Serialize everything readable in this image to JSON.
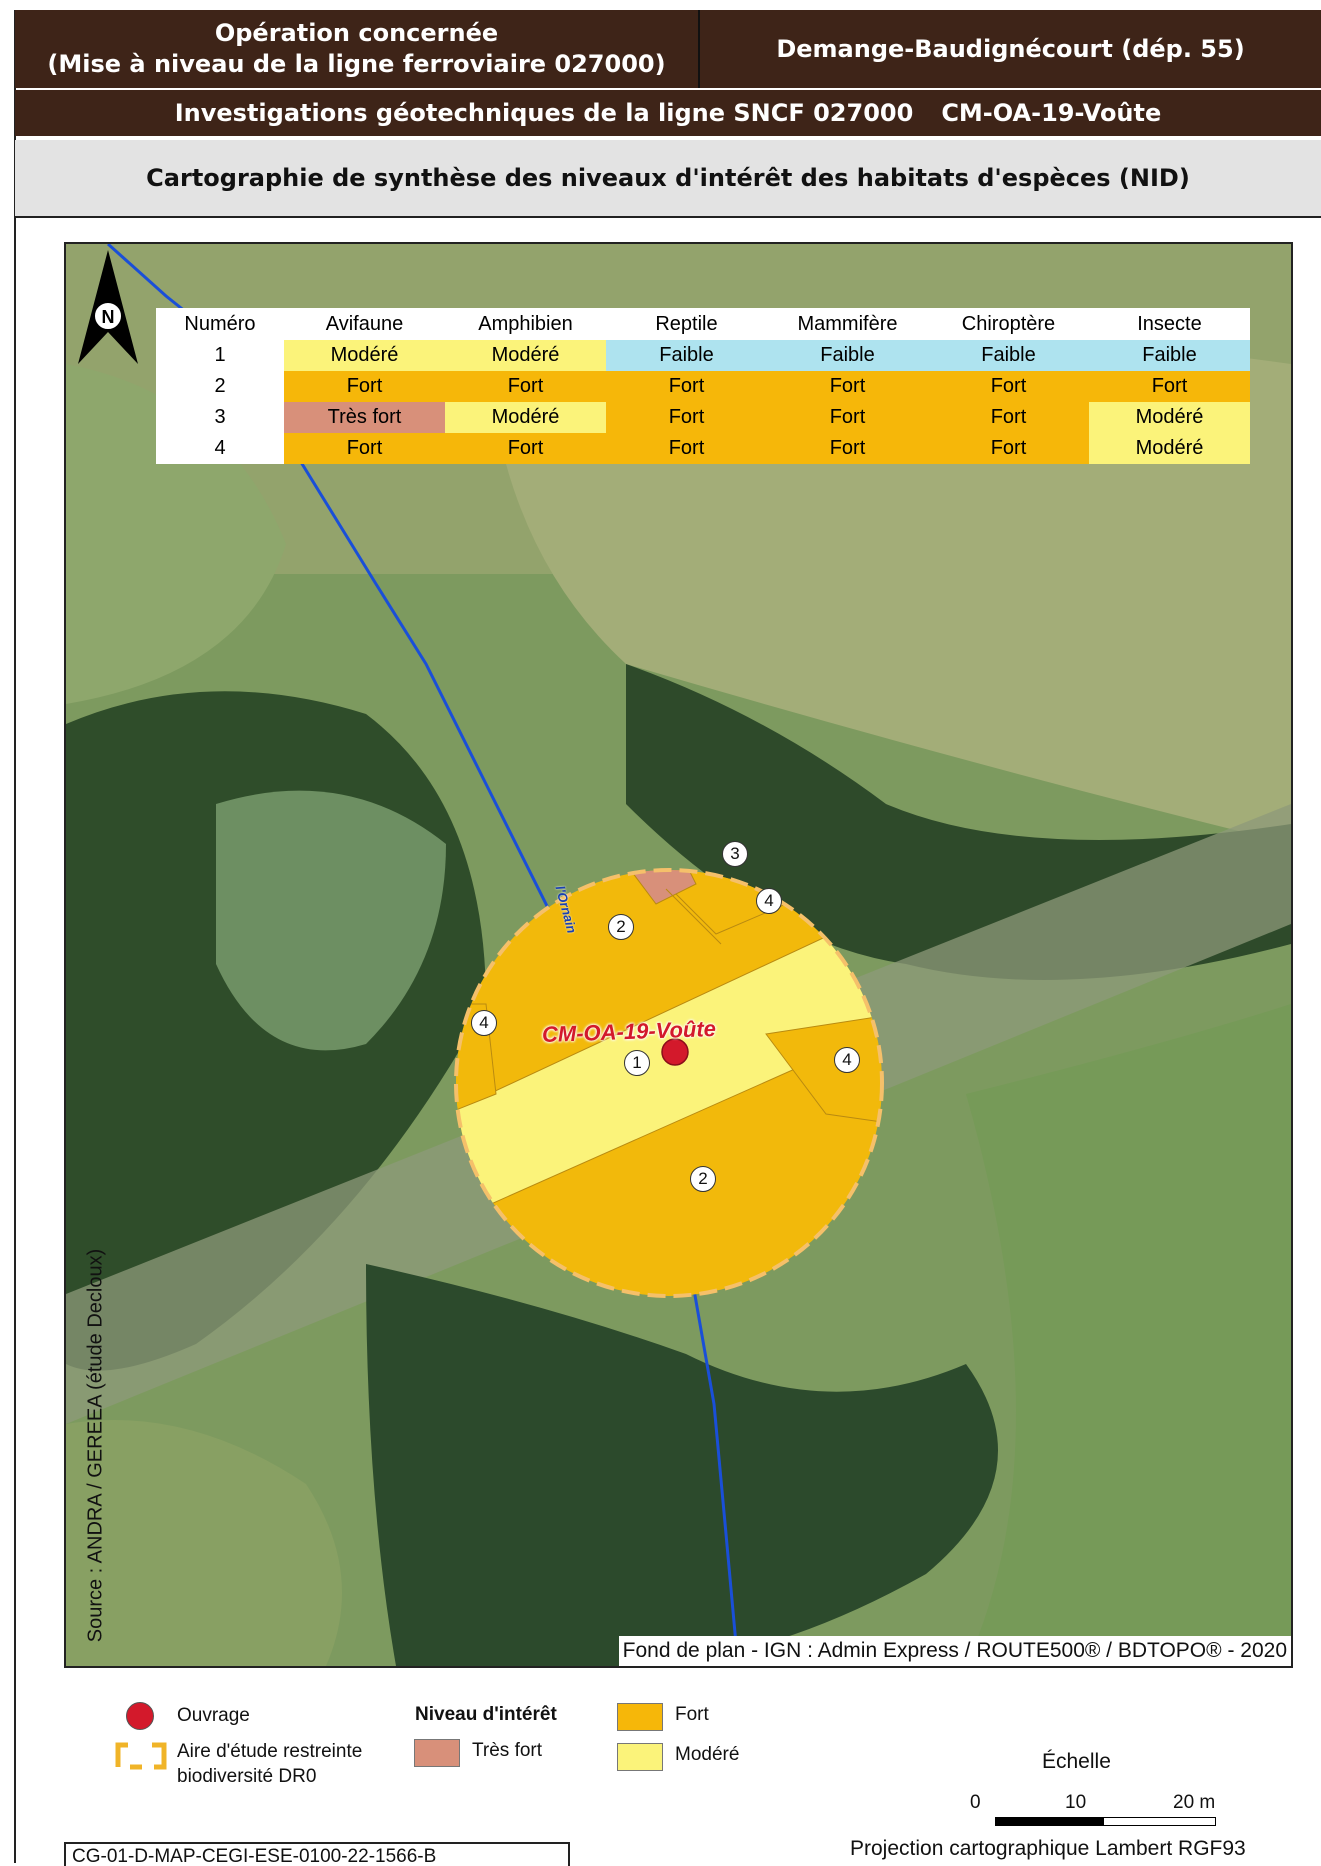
{
  "header": {
    "operation_line1": "Opération concernée",
    "operation_line2": "(Mise à niveau de la ligne ferroviaire 027000)",
    "location": "Demange-Baudignécourt (dép. 55)",
    "investigations": "Investigations géotechniques de la ligne SNCF 027000",
    "site_code": "CM-OA-19-Voûte"
  },
  "subtitle": "Cartographie de synthèse des niveaux d'intérêt des habitats d'espèces (NID)",
  "colors": {
    "header_bg": "#3e2418",
    "fort": "#f6b709",
    "modere": "#fbf37a",
    "faible": "#aee3ef",
    "tres_fort": "#d8907a",
    "ouvrage": "#d3192b",
    "river": "#1a4fd8"
  },
  "table": {
    "headers": [
      "Numéro",
      "Avifaune",
      "Amphibien",
      "Reptile",
      "Mammifère",
      "Chiroptère",
      "Insecte"
    ],
    "rows": [
      {
        "num": "1",
        "values": [
          "Modéré",
          "Modéré",
          "Faible",
          "Faible",
          "Faible",
          "Faible"
        ]
      },
      {
        "num": "2",
        "values": [
          "Fort",
          "Fort",
          "Fort",
          "Fort",
          "Fort",
          "Fort"
        ]
      },
      {
        "num": "3",
        "values": [
          "Très fort",
          "Modéré",
          "Fort",
          "Fort",
          "Fort",
          "Modéré"
        ]
      },
      {
        "num": "4",
        "values": [
          "Fort",
          "Fort",
          "Fort",
          "Fort",
          "Fort",
          "Modéré"
        ]
      }
    ]
  },
  "map": {
    "north_letter": "N",
    "site_label": "CM-OA-19-Voûte",
    "river_label": "l'Ornain",
    "zone_labels": [
      "1",
      "2",
      "2",
      "3",
      "4",
      "4",
      "4"
    ],
    "source": "Source : ANDRA / GEREEA (étude Decloux)",
    "basemap": "Fond de plan - IGN : Admin Express / ROUTE500® / BDTOPO® - 2020"
  },
  "legend": {
    "ouvrage": "Ouvrage",
    "aire_line1": "Aire d'étude restreinte",
    "aire_line2": "biodiversité DR0",
    "niveau_title": "Niveau d'intérêt",
    "tres_fort": "Très fort",
    "fort": "Fort",
    "modere": "Modéré",
    "scale_title": "Échelle",
    "scale_ticks": [
      "0",
      "10",
      "20 m"
    ],
    "projection": "Projection cartographique Lambert RGF93",
    "doc_code": "CG-01-D-MAP-CEGI-ESE-0100-22-1566-B"
  },
  "icons": [
    "north-arrow-icon",
    "ouvrage-marker-icon",
    "study-area-icon"
  ]
}
